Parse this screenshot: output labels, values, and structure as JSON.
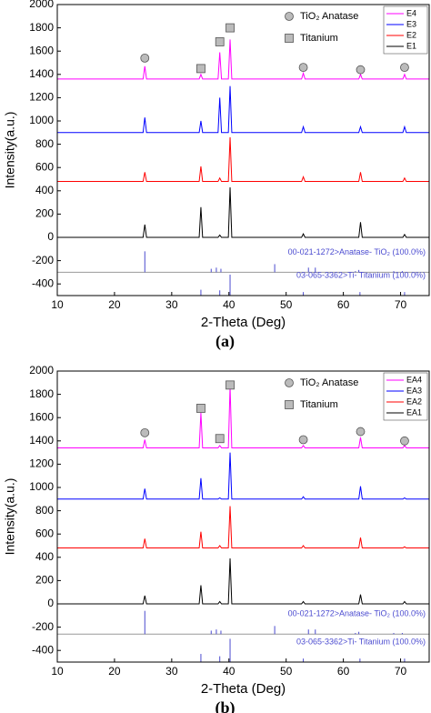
{
  "chart_data": [
    {
      "type": "line",
      "caption": "(a)",
      "xlabel": "2-Theta (Deg)",
      "ylabel": "Intensity(a.u.)",
      "xlim": [
        10,
        75
      ],
      "ylim": [
        -500,
        2000
      ],
      "xticks": [
        10,
        20,
        30,
        40,
        50,
        60,
        70
      ],
      "yticks": [
        -400,
        -200,
        0,
        200,
        400,
        600,
        800,
        1000,
        1200,
        1400,
        1600,
        1800,
        2000
      ],
      "x": [
        10,
        25.0,
        25.3,
        25.6,
        34.8,
        35.1,
        35.4,
        38.1,
        38.4,
        38.7,
        39.9,
        40.2,
        40.5,
        52.7,
        53.0,
        53.3,
        62.7,
        63.0,
        63.3,
        70.4,
        70.7,
        71.0,
        75
      ],
      "series": [
        {
          "name": "E1",
          "color": "#000000",
          "values": [
            0,
            0,
            110,
            0,
            0,
            260,
            0,
            0,
            20,
            0,
            0,
            430,
            0,
            0,
            30,
            0,
            0,
            130,
            0,
            0,
            25,
            0,
            0
          ]
        },
        {
          "name": "E2",
          "color": "#ff0000",
          "values": [
            480,
            480,
            560,
            480,
            480,
            610,
            480,
            480,
            510,
            480,
            480,
            860,
            480,
            480,
            520,
            480,
            480,
            560,
            480,
            480,
            510,
            480,
            480
          ]
        },
        {
          "name": "E3",
          "color": "#0000ff",
          "values": [
            900,
            900,
            1030,
            900,
            900,
            1000,
            900,
            900,
            1200,
            900,
            900,
            1300,
            900,
            900,
            950,
            900,
            900,
            950,
            900,
            900,
            950,
            900,
            900
          ]
        },
        {
          "name": "E4",
          "color": "#ff00ff",
          "values": [
            1360,
            1360,
            1470,
            1360,
            1360,
            1400,
            1360,
            1360,
            1590,
            1360,
            1360,
            1700,
            1360,
            1360,
            1410,
            1360,
            1360,
            1400,
            1360,
            1360,
            1400,
            1360,
            1360
          ]
        }
      ],
      "marker_legend": [
        {
          "name": "TiO₂ Anatase",
          "shape": "circle"
        },
        {
          "name": "Titanium",
          "shape": "square"
        }
      ],
      "markers": [
        {
          "shape": "circle",
          "x": 25.3,
          "y": 1540
        },
        {
          "shape": "square",
          "x": 35.1,
          "y": 1450
        },
        {
          "shape": "square",
          "x": 38.4,
          "y": 1680
        },
        {
          "shape": "square",
          "x": 40.2,
          "y": 1800
        },
        {
          "shape": "circle",
          "x": 53.0,
          "y": 1460
        },
        {
          "shape": "circle",
          "x": 63.0,
          "y": 1440
        },
        {
          "shape": "circle",
          "x": 70.7,
          "y": 1460
        }
      ],
      "references": [
        {
          "label": "00-021-1272>Anatase- TiO₂ (100.0%)",
          "color": "#4b4bd0",
          "baseline": -300,
          "positions": [
            25.3,
            36.9,
            37.8,
            38.6,
            48.0,
            53.9,
            55.1,
            62.1,
            62.7,
            68.8,
            70.3,
            75.0
          ],
          "values": [
            -120,
            -270,
            -260,
            -270,
            -230,
            -260,
            -260,
            -290,
            -280,
            -290,
            -290,
            -290
          ]
        },
        {
          "label": "03-065-3362>Ti- Titanium (100.0%)",
          "color": "#4b4bd0",
          "baseline": -500,
          "positions": [
            35.1,
            38.4,
            40.2,
            53.0,
            62.9,
            70.7
          ],
          "values": [
            -450,
            -455,
            -320,
            -470,
            -470,
            -470
          ]
        }
      ]
    },
    {
      "type": "line",
      "caption": "(b)",
      "xlabel": "2-Theta (Deg)",
      "ylabel": "Intensity(a.u.)",
      "xlim": [
        10,
        75
      ],
      "ylim": [
        -500,
        2000
      ],
      "xticks": [
        10,
        20,
        30,
        40,
        50,
        60,
        70
      ],
      "yticks": [
        -400,
        -200,
        0,
        200,
        400,
        600,
        800,
        1000,
        1200,
        1400,
        1600,
        1800,
        2000
      ],
      "x": [
        10,
        25.0,
        25.3,
        25.6,
        34.8,
        35.1,
        35.4,
        38.1,
        38.4,
        38.7,
        39.9,
        40.2,
        40.5,
        52.7,
        53.0,
        53.3,
        62.7,
        63.0,
        63.3,
        70.4,
        70.7,
        71.0,
        75
      ],
      "series": [
        {
          "name": "EA1",
          "color": "#000000",
          "values": [
            0,
            0,
            70,
            0,
            0,
            160,
            0,
            0,
            20,
            0,
            0,
            390,
            0,
            0,
            20,
            0,
            0,
            80,
            0,
            0,
            20,
            0,
            0
          ]
        },
        {
          "name": "EA2",
          "color": "#ff0000",
          "values": [
            480,
            480,
            560,
            480,
            480,
            620,
            480,
            480,
            500,
            480,
            480,
            840,
            480,
            480,
            500,
            480,
            480,
            570,
            480,
            480,
            490,
            480,
            480
          ]
        },
        {
          "name": "EA3",
          "color": "#0000ff",
          "values": [
            900,
            900,
            990,
            900,
            900,
            1080,
            900,
            900,
            910,
            900,
            900,
            1300,
            900,
            900,
            920,
            900,
            900,
            1010,
            900,
            900,
            910,
            900,
            900
          ]
        },
        {
          "name": "EA4",
          "color": "#ff00ff",
          "values": [
            1340,
            1340,
            1410,
            1340,
            1340,
            1640,
            1340,
            1340,
            1360,
            1340,
            1340,
            1870,
            1340,
            1340,
            1360,
            1340,
            1340,
            1430,
            1340,
            1340,
            1360,
            1340,
            1340
          ]
        }
      ],
      "marker_legend": [
        {
          "name": "TiO₂ Anatase",
          "shape": "circle"
        },
        {
          "name": "Titanium",
          "shape": "square"
        }
      ],
      "markers": [
        {
          "shape": "circle",
          "x": 25.3,
          "y": 1470
        },
        {
          "shape": "square",
          "x": 35.1,
          "y": 1680
        },
        {
          "shape": "square",
          "x": 38.4,
          "y": 1420
        },
        {
          "shape": "square",
          "x": 40.2,
          "y": 1880
        },
        {
          "shape": "circle",
          "x": 53.0,
          "y": 1410
        },
        {
          "shape": "circle",
          "x": 63.0,
          "y": 1480
        },
        {
          "shape": "circle",
          "x": 70.7,
          "y": 1400
        }
      ],
      "references": [
        {
          "label": "00-021-1272>Anatase- TiO₂ (100.0%)",
          "color": "#4b4bd0",
          "baseline": -260,
          "positions": [
            25.3,
            36.9,
            37.8,
            38.6,
            48.0,
            53.9,
            55.1,
            62.1,
            62.7,
            68.8,
            70.3,
            75.0
          ],
          "values": [
            -60,
            -230,
            -220,
            -230,
            -190,
            -220,
            -220,
            -250,
            -240,
            -250,
            -250,
            -250
          ]
        },
        {
          "label": "03-065-3362>Ti- Titanium (100.0%)",
          "color": "#4b4bd0",
          "baseline": -500,
          "positions": [
            35.1,
            38.4,
            40.2,
            53.0,
            62.9,
            70.7
          ],
          "values": [
            -430,
            -450,
            -300,
            -470,
            -470,
            -470
          ]
        }
      ]
    }
  ]
}
